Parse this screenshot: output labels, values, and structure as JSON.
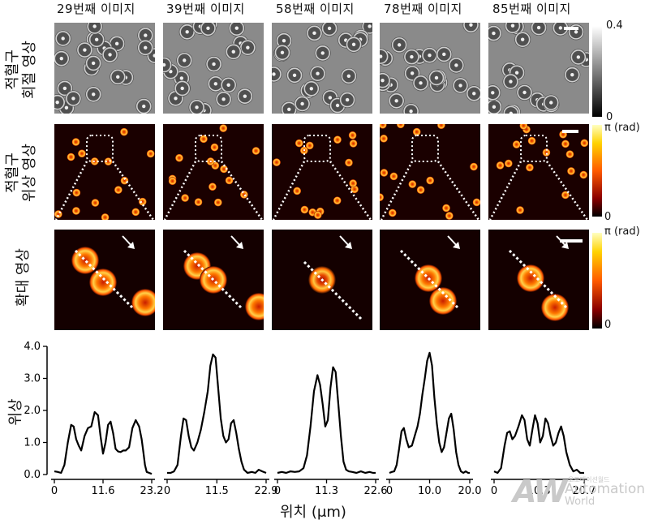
{
  "column_titles": [
    "29번째 이미지",
    "39번째 이미지",
    "58번째 이미지",
    "78번째 이미지",
    "85번째 이미지"
  ],
  "row_titles": {
    "row1": [
      "적혈구",
      "회절 영상"
    ],
    "row2": [
      "적혈구",
      "위상 영상"
    ],
    "row3": [
      "확대 영상"
    ]
  },
  "colorbars": {
    "row1": {
      "top": "0.4",
      "bottom": "0"
    },
    "row2": {
      "top": "π (rad)",
      "bottom": "0"
    },
    "row3": {
      "top": "π (rad)",
      "bottom": "0"
    }
  },
  "watermark": {
    "logo": "AW",
    "line1": "Automation",
    "line2": "World",
    "small": "오토메이션월드"
  },
  "chart_data": {
    "type": "line",
    "ylabel": "위상",
    "xlabel": "위치 (μm)",
    "ylim": [
      0,
      4.0
    ],
    "yticks": [
      "0.0",
      "1.0",
      "2.0",
      "3.0",
      "4.0"
    ],
    "series": [
      {
        "xticks": [
          "0",
          "11.6",
          "23.2"
        ],
        "xmax": 23.2,
        "x": [
          0,
          0.8,
          1.6,
          2.4,
          3.2,
          4.0,
          4.6,
          5.2,
          5.8,
          6.4,
          7.2,
          8.0,
          8.8,
          9.6,
          10.4,
          11.0,
          11.6,
          12.2,
          12.8,
          13.4,
          14.0,
          14.6,
          15.2,
          15.8,
          16.4,
          17.0,
          17.8,
          18.6,
          19.4,
          20.2,
          20.8,
          21.2,
          21.6,
          22.0,
          22.6,
          23.2
        ],
        "y": [
          0.1,
          0.08,
          0.05,
          0.3,
          1.0,
          1.55,
          1.5,
          1.1,
          0.9,
          0.75,
          1.2,
          1.45,
          1.5,
          1.95,
          1.85,
          1.2,
          0.65,
          1.0,
          1.55,
          1.65,
          1.3,
          0.8,
          0.72,
          0.7,
          0.75,
          0.75,
          0.85,
          1.45,
          1.7,
          1.5,
          1.1,
          0.7,
          0.3,
          0.08,
          0.05,
          0.02
        ]
      },
      {
        "xticks": [
          "0",
          "11.5",
          "22.9"
        ],
        "xmax": 22.9,
        "x": [
          0,
          0.8,
          1.6,
          2.4,
          3.2,
          3.8,
          4.4,
          5.0,
          5.6,
          6.2,
          7.0,
          7.8,
          8.6,
          9.4,
          10.0,
          10.6,
          11.2,
          11.8,
          12.4,
          13.0,
          13.6,
          14.2,
          14.8,
          15.4,
          16.0,
          16.6,
          17.2,
          17.8,
          18.6,
          19.6,
          20.4,
          21.2,
          22.0,
          22.9
        ],
        "y": [
          0.05,
          0.05,
          0.1,
          0.3,
          1.2,
          1.75,
          1.7,
          1.2,
          0.85,
          0.75,
          1.0,
          1.4,
          1.95,
          2.6,
          3.4,
          3.75,
          3.65,
          2.7,
          1.75,
          1.2,
          1.0,
          1.1,
          1.6,
          1.7,
          1.3,
          0.8,
          0.4,
          0.15,
          0.05,
          0.08,
          0.05,
          0.15,
          0.1,
          0.05
        ]
      },
      {
        "xticks": [
          "0",
          "11.3",
          "22.6"
        ],
        "xmax": 22.6,
        "x": [
          0,
          1.0,
          2.0,
          3.0,
          4.0,
          5.0,
          6.0,
          6.8,
          7.6,
          8.4,
          9.2,
          9.8,
          10.4,
          11.0,
          11.6,
          12.2,
          12.8,
          13.4,
          14.0,
          14.6,
          15.2,
          15.8,
          16.4,
          17.2,
          18.2,
          19.2,
          20.2,
          21.2,
          22.0,
          22.6
        ],
        "y": [
          0.05,
          0.08,
          0.05,
          0.1,
          0.08,
          0.1,
          0.2,
          0.6,
          1.5,
          2.6,
          3.1,
          2.8,
          2.2,
          1.5,
          1.7,
          2.7,
          3.35,
          3.2,
          2.2,
          1.2,
          0.4,
          0.15,
          0.1,
          0.08,
          0.05,
          0.1,
          0.05,
          0.08,
          0.05,
          0.05
        ]
      },
      {
        "xticks": [
          "0",
          "10.0",
          "20.0"
        ],
        "xmax": 20.0,
        "x": [
          0,
          0.6,
          1.2,
          1.8,
          2.4,
          3.0,
          3.6,
          4.2,
          4.8,
          5.6,
          6.4,
          7.0,
          7.6,
          8.2,
          8.8,
          9.4,
          10.0,
          10.6,
          11.2,
          11.8,
          12.4,
          13.0,
          13.6,
          14.2,
          14.8,
          15.4,
          16.0,
          16.6,
          17.2,
          17.8,
          18.4,
          19.0,
          19.6,
          20.0
        ],
        "y": [
          0.05,
          0.08,
          0.1,
          0.3,
          0.8,
          1.35,
          1.45,
          1.1,
          0.85,
          0.9,
          1.25,
          1.5,
          1.9,
          2.5,
          3.0,
          3.55,
          3.8,
          3.4,
          2.4,
          1.6,
          1.0,
          0.7,
          0.85,
          1.3,
          1.75,
          1.9,
          1.4,
          0.7,
          0.3,
          0.1,
          0.05,
          0.1,
          0.05,
          0.05
        ]
      },
      {
        "xticks": [
          "0",
          "10.3",
          "20.7"
        ],
        "xmax": 20.7,
        "x": [
          0,
          0.8,
          1.6,
          2.4,
          3.0,
          3.6,
          4.2,
          4.8,
          5.6,
          6.4,
          7.0,
          7.6,
          8.2,
          8.8,
          9.4,
          10.0,
          10.6,
          11.2,
          11.8,
          12.4,
          13.0,
          13.6,
          14.2,
          14.8,
          15.4,
          16.0,
          16.6,
          17.4,
          18.2,
          19.0,
          19.8,
          20.7
        ],
        "y": [
          0.1,
          0.05,
          0.2,
          0.9,
          1.3,
          1.35,
          1.1,
          1.2,
          1.5,
          1.85,
          1.7,
          1.1,
          0.9,
          1.4,
          1.85,
          1.6,
          1.0,
          1.2,
          1.75,
          1.6,
          1.2,
          0.9,
          1.0,
          1.3,
          1.5,
          1.2,
          0.7,
          0.3,
          0.1,
          0.15,
          0.05,
          0.05
        ]
      }
    ]
  }
}
